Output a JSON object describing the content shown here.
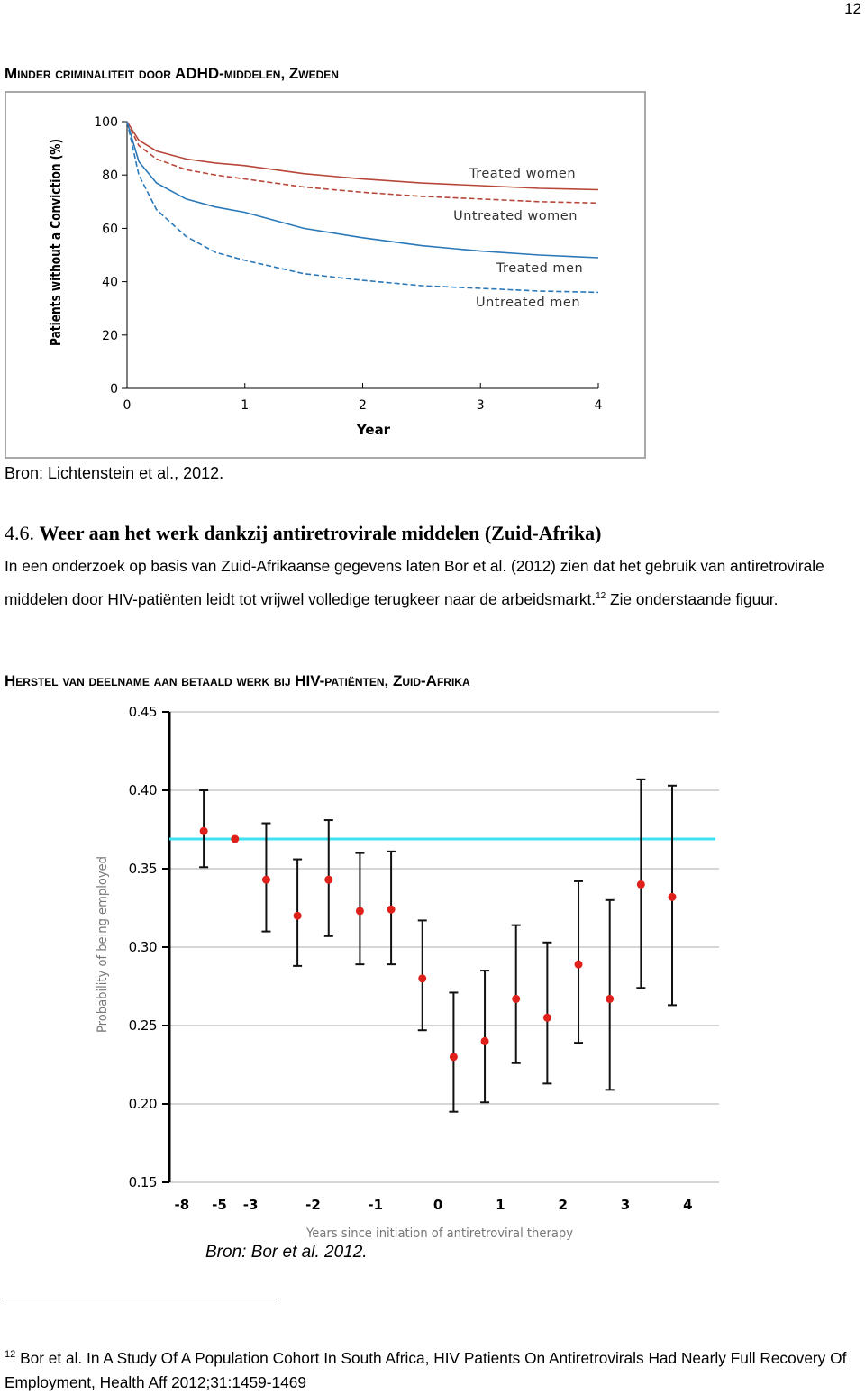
{
  "page_number": "12",
  "heading1": "Minder criminaliteit door ADHD-middelen, Zweden",
  "source1": "Bron: Lichtenstein et al., 2012.",
  "section_number": "4.6.",
  "section_title": "Weer aan het werk dankzij antiretrovirale middelen (Zuid-Afrika)",
  "paragraph": {
    "text_before": "In een onderzoek op basis van Zuid-Afrikaanse gegevens laten Bor et al. (2012) zien dat het gebruik van antiretrovirale middelen door HIV-patiënten leidt tot vrijwel volledige terugkeer naar de arbeidsmarkt.",
    "footnote_ref": "12",
    "text_after": "Zie onderstaande figuur."
  },
  "heading2": "Herstel van deelname aan betaald werk bij HIV-patiënten, Zuid-Afrika",
  "source2": "Bron: Bor et al. 2012.",
  "footnote": {
    "number": "12",
    "text": "Bor et al. In A Study Of A Population Cohort In South Africa, HIV Patients On Antiretrovirals Had Nearly Full Recovery Of Employment, Health Aff 2012;31:1459-1469"
  },
  "chart_data": [
    {
      "type": "line",
      "y_label": "Patients without a Conviction (%)",
      "x_label": "Year",
      "x": [
        0,
        0.1,
        0.25,
        0.5,
        0.75,
        1,
        1.5,
        2,
        2.5,
        3,
        3.5,
        4
      ],
      "series": [
        {
          "name": "Treated women",
          "color": "#b8473a",
          "dashed": false,
          "values": [
            100,
            93,
            89,
            86,
            84.5,
            83.5,
            80.5,
            78.5,
            77,
            76,
            75,
            74.5
          ]
        },
        {
          "name": "Untreated women",
          "color": "#b8473a",
          "dashed": true,
          "values": [
            100,
            91,
            86,
            82,
            80,
            78.5,
            75.5,
            73.5,
            72,
            71,
            70,
            69.5
          ]
        },
        {
          "name": "Treated men",
          "color": "#2a78b8",
          "dashed": false,
          "values": [
            100,
            85,
            77,
            71,
            68,
            66,
            60,
            56.5,
            53.5,
            51.5,
            50,
            49
          ]
        },
        {
          "name": "Untreated men",
          "color": "#2a78b8",
          "dashed": true,
          "values": [
            100,
            80,
            67,
            57,
            51,
            48,
            43,
            40.5,
            38.5,
            37.5,
            36.5,
            36
          ]
        }
      ],
      "xlim": [
        0,
        4
      ],
      "xticks": [
        0,
        1,
        2,
        3,
        4
      ],
      "ylim": [
        0,
        100
      ],
      "yticks": [
        0,
        20,
        40,
        60,
        80,
        100
      ]
    },
    {
      "type": "scatter",
      "y_label": "Probability of being employed",
      "x_label": "Years since initiation of antiretroviral therapy",
      "x": [
        -3.75,
        -3.25,
        -2.75,
        -2.25,
        -1.75,
        -1.25,
        -0.75,
        -0.25,
        0.25,
        0.75,
        1.25,
        1.75,
        2.25,
        2.75,
        3.25,
        3.75
      ],
      "values": [
        0.374,
        0.369,
        0.343,
        0.32,
        0.343,
        0.323,
        0.324,
        0.28,
        0.23,
        0.24,
        0.267,
        0.255,
        0.289,
        0.267,
        0.34,
        0.332
      ],
      "ci_low": [
        0.351,
        null,
        0.31,
        0.288,
        0.307,
        0.289,
        0.289,
        0.247,
        0.195,
        0.201,
        0.226,
        0.213,
        0.239,
        0.209,
        0.274,
        0.263
      ],
      "ci_high": [
        0.4,
        null,
        0.379,
        0.356,
        0.381,
        0.36,
        0.361,
        0.317,
        0.271,
        0.285,
        0.314,
        0.303,
        0.342,
        0.33,
        0.407,
        0.403
      ],
      "color": "#e0201b",
      "reference_value": 0.369,
      "reference_color": "#3fe0f0",
      "xlim": [
        -4.3,
        4.5
      ],
      "xticks": [
        {
          "value": -4.1,
          "label": "-8"
        },
        {
          "value": -3.5,
          "label": "-5"
        },
        -3,
        -2,
        -1,
        0,
        1,
        2,
        3,
        4
      ],
      "ylim": [
        0.15,
        0.45
      ],
      "yticks": [
        0.15,
        {
          "value": 0.2,
          "label": "0.20"
        },
        0.25,
        {
          "value": 0.3,
          "label": "0.30"
        },
        0.35,
        {
          "value": 0.4,
          "label": "0.40"
        },
        0.45
      ],
      "grid": true
    }
  ]
}
